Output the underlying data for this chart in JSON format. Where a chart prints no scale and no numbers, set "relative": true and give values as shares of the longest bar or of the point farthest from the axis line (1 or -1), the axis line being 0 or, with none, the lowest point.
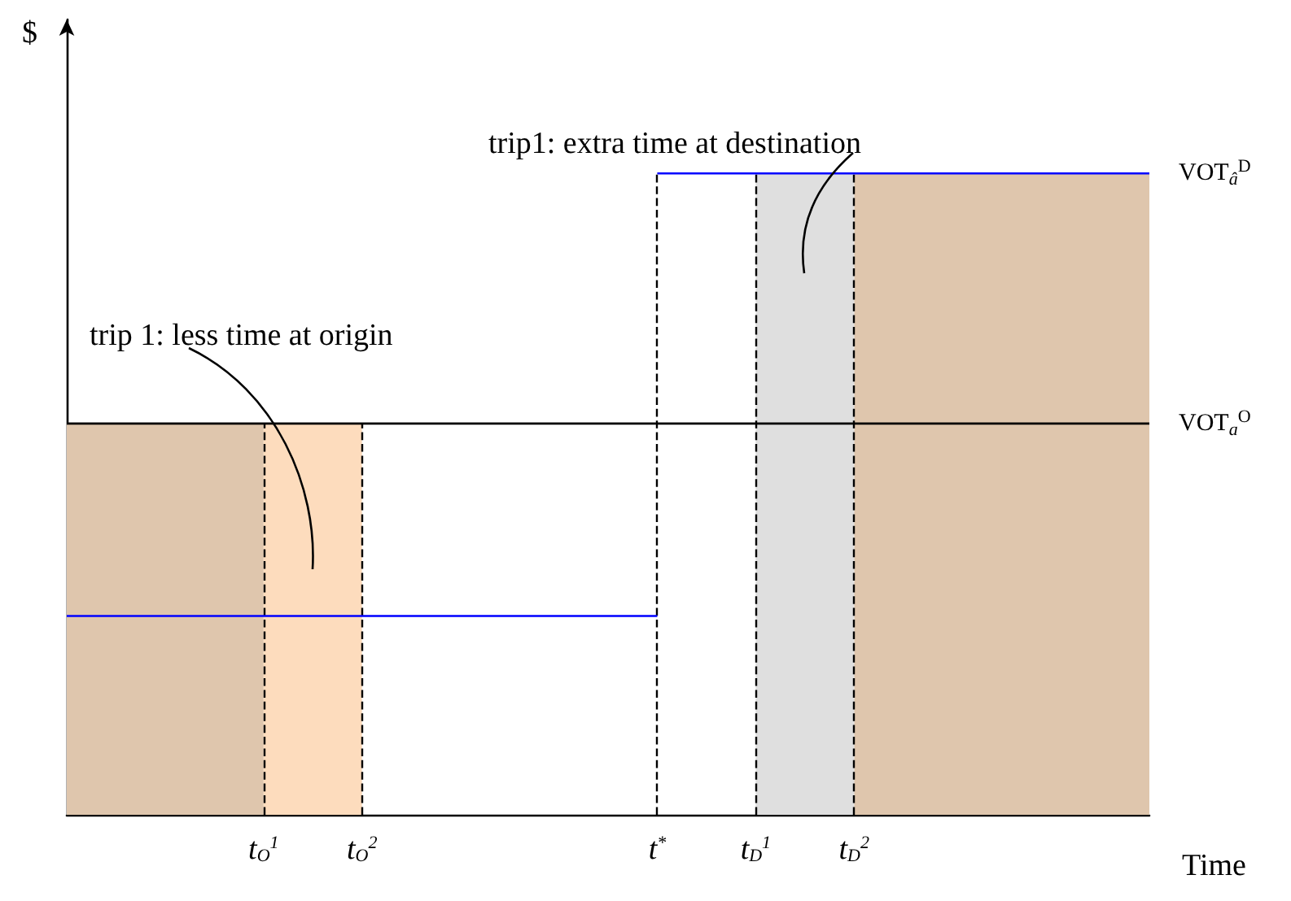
{
  "chart_data": {
    "type": "line",
    "relative": true,
    "xlabel": "Time",
    "ylabel": "$",
    "categories": [
      null,
      null,
      "t$_{O}$$^{1}$",
      "t$_{O}$$^{2}$",
      null,
      null,
      "t$^{*}$",
      "t$_{D}$$^{1}$",
      "t$_{D}$$^{2}$",
      null,
      null,
      null
    ],
    "series": [
      {
        "type": "area",
        "color": "#dfc6ad",
        "values": [
          0.61,
          0.61,
          0.61,
          null,
          null,
          null,
          null,
          null,
          1,
          1,
          1,
          1
        ]
      },
      {
        "type": "area",
        "color": "#fddcbd",
        "values": [
          null,
          null,
          0.61,
          0.61,
          null,
          null,
          null,
          null,
          null,
          null,
          null,
          null
        ]
      },
      {
        "type": "area",
        "color": "#dfdfdf",
        "values": [
          null,
          null,
          null,
          null,
          null,
          null,
          null,
          1,
          1,
          null,
          null,
          null
        ]
      },
      {
        "name": "VOT$_{a}$$^{O}$",
        "color": "#000000",
        "values": [
          0.61,
          0.61,
          0.61,
          0.61,
          0.61,
          0.61,
          0.61,
          0.61,
          0.61,
          0.61,
          0.61,
          0.61
        ]
      },
      {
        "color": "#0000ff",
        "values": [
          0.31,
          0.31,
          0.31,
          0.31,
          0.31,
          0.31,
          0.31,
          null,
          null,
          null,
          null,
          null
        ]
      },
      {
        "name": "VOT$_{â}$$^{D}$",
        "color": "#0000ff",
        "values": [
          null,
          null,
          null,
          null,
          null,
          null,
          1,
          1,
          1,
          1,
          1,
          1
        ]
      }
    ],
    "ref_lines": [
      {
        "axis": "x",
        "value": "t$_{O}$$^{1}$",
        "color": "#000000",
        "line_style": "dashed"
      },
      {
        "axis": "x",
        "value": "t$_{O}$$^{2}$",
        "color": "#000000",
        "line_style": "dashed"
      },
      {
        "axis": "x",
        "value": "t$^{*}$",
        "color": "#000000",
        "line_style": "dashed"
      },
      {
        "axis": "x",
        "value": "t$_{D}$$^{1}$",
        "color": "#000000",
        "line_style": "dashed"
      },
      {
        "axis": "x",
        "value": "t$_{D}$$^{2}$",
        "color": "#000000",
        "line_style": "dashed"
      }
    ],
    "annotations": [
      "trip 1: less time at origin",
      "trip1: extra time at destination"
    ],
    "marker": "none",
    "line_style": "solid"
  }
}
